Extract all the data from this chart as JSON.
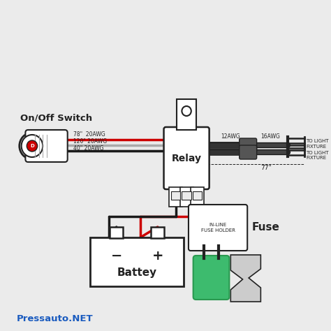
{
  "bg_color": "#ebebeb",
  "watermark": "Pressauto.NET",
  "switch_label": "On/Off Switch",
  "relay_label": "Relay",
  "battery_label": "Battey",
  "fuse_label": "Fuse",
  "fuse_holder_label": "IN-LINE\nFUSE HOLDER",
  "wire_labels": [
    "78\"  20AWG",
    "120\" 20AWG",
    "40\" 20AWG"
  ],
  "wire_label_12awg": "12AWG",
  "wire_label_16awg": "16AWG",
  "wire_label_77": "77\"",
  "light_label1": "TO LIGHT\nFIXTURE",
  "light_label2": "TO LIGHT\nFIXTURE",
  "battery_minus": "−",
  "battery_plus": "+"
}
